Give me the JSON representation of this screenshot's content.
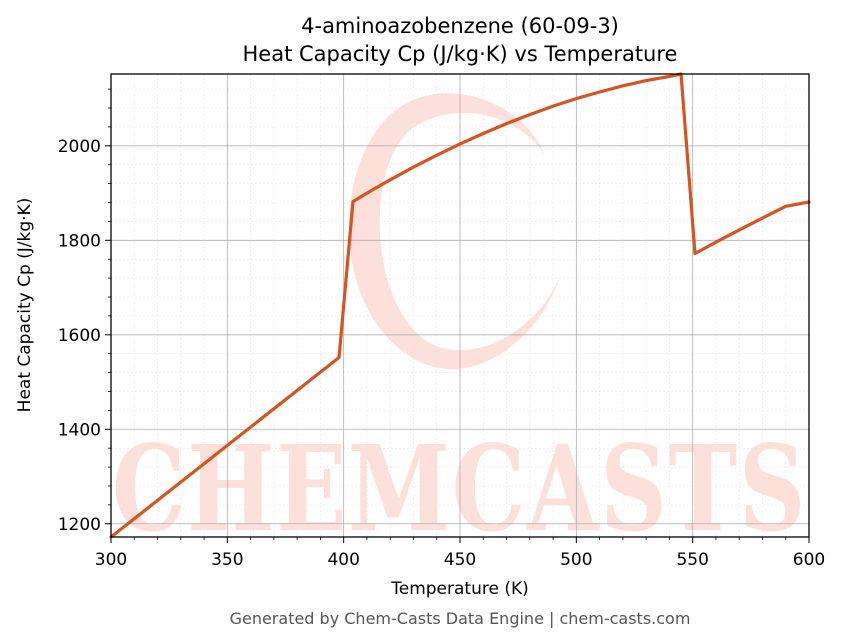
{
  "chart_data": {
    "type": "line",
    "title_line1": "4-aminoazobenzene (60-09-3)",
    "title_line2": "Heat Capacity Cp (J/kg·K) vs Temperature",
    "xlabel": "Temperature (K)",
    "ylabel": "Heat Capacity Cp (J/kg·K)",
    "xlim": [
      300,
      600
    ],
    "ylim": [
      1172,
      2152
    ],
    "x_ticks": [
      300,
      350,
      400,
      450,
      500,
      550,
      600
    ],
    "y_ticks": [
      1200,
      1400,
      1600,
      1800,
      2000
    ],
    "grid": true,
    "series": [
      {
        "color": "#d65322",
        "x": [
          300,
          398,
          404,
          410,
          420,
          430,
          440,
          450,
          460,
          470,
          480,
          490,
          500,
          510,
          520,
          530,
          540,
          545,
          551,
          560,
          570,
          580,
          590,
          600
        ],
        "y": [
          1172,
          1552,
          1882,
          1900,
          1928,
          1955,
          1980,
          2004,
          2026,
          2047,
          2066,
          2084,
          2100,
          2114,
          2127,
          2138,
          2147,
          2152,
          1772,
          1796,
          1822,
          1847,
          1872,
          1881
        ]
      }
    ]
  },
  "watermark": {
    "text": "CHEMCASTS",
    "color": "#fde0da"
  },
  "footer": "Generated by Chem-Casts Data Engine | chem-casts.com"
}
